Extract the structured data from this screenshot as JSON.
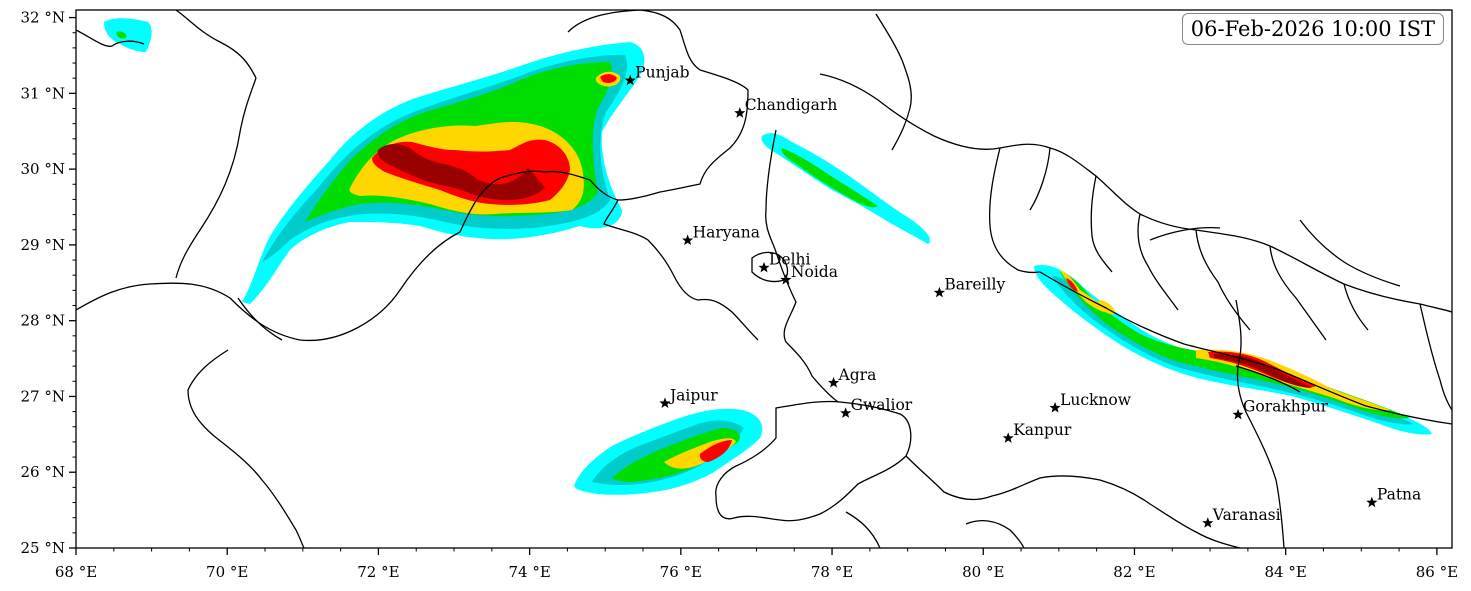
{
  "timestamp": "06-Feb-2026 10:00 IST",
  "axes": {
    "x_ticks": [
      {
        "value": 68,
        "label": "68 °E"
      },
      {
        "value": 70,
        "label": "70 °E"
      },
      {
        "value": 72,
        "label": "72 °E"
      },
      {
        "value": 74,
        "label": "74 °E"
      },
      {
        "value": 76,
        "label": "76 °E"
      },
      {
        "value": 78,
        "label": "78 °E"
      },
      {
        "value": 80,
        "label": "80 °E"
      },
      {
        "value": 82,
        "label": "82 °E"
      },
      {
        "value": 84,
        "label": "84 °E"
      },
      {
        "value": 86,
        "label": "86 °E"
      }
    ],
    "y_ticks": [
      {
        "value": 25,
        "label": "25 °N"
      },
      {
        "value": 26,
        "label": "26 °N"
      },
      {
        "value": 27,
        "label": "27 °N"
      },
      {
        "value": 28,
        "label": "28 °N"
      },
      {
        "value": 29,
        "label": "29 °N"
      },
      {
        "value": 30,
        "label": "30 °N"
      },
      {
        "value": 31,
        "label": "31 °N"
      },
      {
        "value": 32,
        "label": "32 °N"
      }
    ],
    "lon_range": [
      68,
      86.2
    ],
    "lat_range": [
      25,
      32.1
    ]
  },
  "cities": [
    {
      "name": "Punjab",
      "lon": 75.33,
      "lat": 31.17
    },
    {
      "name": "Chandigarh",
      "lon": 76.78,
      "lat": 30.74
    },
    {
      "name": "Haryana",
      "lon": 76.09,
      "lat": 29.06
    },
    {
      "name": "Delhi",
      "lon": 77.1,
      "lat": 28.7
    },
    {
      "name": "Noida",
      "lon": 77.39,
      "lat": 28.54
    },
    {
      "name": "Bareilly",
      "lon": 79.42,
      "lat": 28.37
    },
    {
      "name": "Jaipur",
      "lon": 75.79,
      "lat": 26.91
    },
    {
      "name": "Agra",
      "lon": 78.02,
      "lat": 27.18
    },
    {
      "name": "Gwalior",
      "lon": 78.18,
      "lat": 26.78
    },
    {
      "name": "Lucknow",
      "lon": 80.95,
      "lat": 26.85
    },
    {
      "name": "Kanpur",
      "lon": 80.33,
      "lat": 26.45
    },
    {
      "name": "Gorakhpur",
      "lon": 83.37,
      "lat": 26.76
    },
    {
      "name": "Varanasi",
      "lon": 82.97,
      "lat": 25.33
    },
    {
      "name": "Patna",
      "lon": 85.14,
      "lat": 25.6
    }
  ],
  "colors": {
    "level1": "#00ffff",
    "level2": "#00cccc",
    "level3": "#00dd00",
    "level4": "#ffd700",
    "level5": "#ff0000",
    "level6": "#990000",
    "boundary": "#000000"
  }
}
